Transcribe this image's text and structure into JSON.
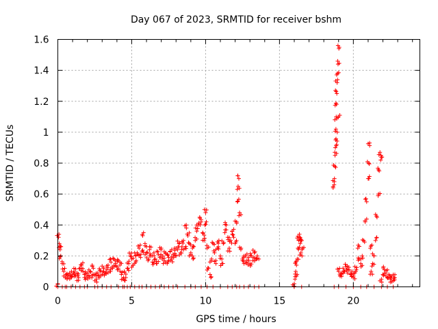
{
  "chart_data": {
    "type": "scatter",
    "title": "Day 067 of 2023, SRMTID for receiver bshm",
    "xlabel": "GPS time / hours",
    "ylabel": "SRMTID / TECUs",
    "xlim": [
      0,
      24.5
    ],
    "ylim": [
      0,
      1.6
    ],
    "xticks": [
      0,
      5,
      10,
      15,
      20
    ],
    "xtick_labels": [
      "0",
      "5",
      "10",
      "15",
      "20"
    ],
    "yticks": [
      0,
      0.2,
      0.4,
      0.6,
      0.8,
      1.0,
      1.2,
      1.4,
      1.6
    ],
    "ytick_labels": [
      "0",
      "0.2",
      "0.4",
      "0.6",
      "0.8",
      "1",
      "1.2",
      "1.4",
      "1.6"
    ],
    "grid": true,
    "marker": "+",
    "color": "#ff0000",
    "series": [
      {
        "name": "SRMTID",
        "points": [
          [
            0.0,
            0.02
          ],
          [
            0.05,
            0.32
          ],
          [
            0.1,
            0.28
          ],
          [
            0.15,
            0.24
          ],
          [
            0.2,
            0.2
          ],
          [
            0.3,
            0.15
          ],
          [
            0.4,
            0.1
          ],
          [
            0.5,
            0.06
          ],
          [
            0.6,
            0.08
          ],
          [
            0.7,
            0.07
          ],
          [
            0.8,
            0.09
          ],
          [
            0.9,
            0.06
          ],
          [
            1.0,
            0.08
          ],
          [
            1.1,
            0.1
          ],
          [
            1.2,
            0.07
          ],
          [
            1.3,
            0.09
          ],
          [
            1.4,
            0.06
          ],
          [
            1.5,
            0.12
          ],
          [
            1.6,
            0.14
          ],
          [
            1.7,
            0.1
          ],
          [
            1.8,
            0.08
          ],
          [
            1.9,
            0.06
          ],
          [
            2.0,
            0.09
          ],
          [
            2.1,
            0.07
          ],
          [
            2.2,
            0.1
          ],
          [
            2.3,
            0.06
          ],
          [
            2.4,
            0.12
          ],
          [
            2.5,
            0.08
          ],
          [
            2.6,
            0.05
          ],
          [
            2.7,
            0.09
          ],
          [
            2.8,
            0.07
          ],
          [
            2.9,
            0.1
          ],
          [
            3.0,
            0.08
          ],
          [
            3.1,
            0.12
          ],
          [
            3.2,
            0.09
          ],
          [
            3.3,
            0.11
          ],
          [
            3.4,
            0.14
          ],
          [
            3.5,
            0.1
          ],
          [
            3.6,
            0.16
          ],
          [
            3.7,
            0.12
          ],
          [
            3.8,
            0.18
          ],
          [
            3.9,
            0.15
          ],
          [
            4.0,
            0.13
          ],
          [
            4.1,
            0.17
          ],
          [
            4.2,
            0.14
          ],
          [
            4.3,
            0.08
          ],
          [
            4.4,
            0.05
          ],
          [
            4.5,
            0.1
          ],
          [
            4.6,
            0.06
          ],
          [
            4.7,
            0.12
          ],
          [
            4.8,
            0.15
          ],
          [
            4.9,
            0.2
          ],
          [
            5.0,
            0.18
          ],
          [
            5.1,
            0.14
          ],
          [
            5.2,
            0.22
          ],
          [
            5.3,
            0.17
          ],
          [
            5.4,
            0.21
          ],
          [
            5.5,
            0.25
          ],
          [
            5.6,
            0.19
          ],
          [
            5.7,
            0.23
          ],
          [
            5.8,
            0.35
          ],
          [
            5.9,
            0.28
          ],
          [
            6.0,
            0.22
          ],
          [
            6.1,
            0.17
          ],
          [
            6.2,
            0.24
          ],
          [
            6.3,
            0.2
          ],
          [
            6.4,
            0.16
          ],
          [
            6.5,
            0.22
          ],
          [
            6.6,
            0.18
          ],
          [
            6.7,
            0.15
          ],
          [
            6.8,
            0.21
          ],
          [
            6.9,
            0.19
          ],
          [
            7.0,
            0.25
          ],
          [
            7.1,
            0.2
          ],
          [
            7.2,
            0.17
          ],
          [
            7.3,
            0.22
          ],
          [
            7.4,
            0.15
          ],
          [
            7.5,
            0.19
          ],
          [
            7.6,
            0.23
          ],
          [
            7.7,
            0.18
          ],
          [
            7.8,
            0.21
          ],
          [
            7.9,
            0.25
          ],
          [
            8.0,
            0.2
          ],
          [
            8.1,
            0.24
          ],
          [
            8.2,
            0.28
          ],
          [
            8.3,
            0.22
          ],
          [
            8.4,
            0.26
          ],
          [
            8.5,
            0.3
          ],
          [
            8.6,
            0.25
          ],
          [
            8.7,
            0.38
          ],
          [
            8.8,
            0.33
          ],
          [
            8.9,
            0.28
          ],
          [
            9.0,
            0.22
          ],
          [
            9.1,
            0.2
          ],
          [
            9.2,
            0.26
          ],
          [
            9.3,
            0.3
          ],
          [
            9.4,
            0.36
          ],
          [
            9.5,
            0.4
          ],
          [
            9.6,
            0.45
          ],
          [
            9.7,
            0.42
          ],
          [
            9.8,
            0.35
          ],
          [
            9.9,
            0.3
          ],
          [
            10.0,
            0.48
          ],
          [
            10.05,
            0.42
          ],
          [
            10.1,
            0.25
          ],
          [
            10.2,
            0.12
          ],
          [
            10.3,
            0.08
          ],
          [
            10.4,
            0.18
          ],
          [
            10.5,
            0.28
          ],
          [
            10.6,
            0.22
          ],
          [
            10.7,
            0.15
          ],
          [
            10.8,
            0.25
          ],
          [
            10.9,
            0.3
          ],
          [
            11.0,
            0.2
          ],
          [
            11.1,
            0.15
          ],
          [
            11.2,
            0.28
          ],
          [
            11.3,
            0.35
          ],
          [
            11.4,
            0.4
          ],
          [
            11.5,
            0.32
          ],
          [
            11.6,
            0.25
          ],
          [
            11.7,
            0.3
          ],
          [
            11.8,
            0.36
          ],
          [
            11.9,
            0.32
          ],
          [
            12.0,
            0.28
          ],
          [
            12.1,
            0.42
          ],
          [
            12.15,
            0.55
          ],
          [
            12.2,
            0.65
          ],
          [
            12.25,
            0.7
          ],
          [
            12.3,
            0.48
          ],
          [
            12.4,
            0.25
          ],
          [
            12.5,
            0.18
          ],
          [
            12.6,
            0.15
          ],
          [
            12.7,
            0.2
          ],
          [
            12.8,
            0.16
          ],
          [
            12.9,
            0.19
          ],
          [
            13.0,
            0.15
          ],
          [
            13.1,
            0.2
          ],
          [
            13.2,
            0.17
          ],
          [
            13.3,
            0.22
          ],
          [
            13.4,
            0.18
          ],
          [
            13.5,
            0.2
          ],
          [
            16.0,
            0.02
          ],
          [
            16.05,
            0.05
          ],
          [
            16.1,
            0.1
          ],
          [
            16.15,
            0.14
          ],
          [
            16.2,
            0.18
          ],
          [
            16.25,
            0.25
          ],
          [
            16.3,
            0.3
          ],
          [
            16.35,
            0.34
          ],
          [
            16.4,
            0.28
          ],
          [
            16.45,
            0.22
          ],
          [
            16.5,
            0.3
          ],
          [
            16.55,
            0.25
          ],
          [
            18.7,
            0.66
          ],
          [
            18.72,
            0.7
          ],
          [
            18.74,
            0.78
          ],
          [
            18.76,
            0.85
          ],
          [
            18.78,
            0.9
          ],
          [
            18.8,
            0.95
          ],
          [
            18.82,
            1.02
          ],
          [
            18.84,
            1.1
          ],
          [
            18.86,
            1.18
          ],
          [
            18.88,
            1.25
          ],
          [
            18.9,
            1.32
          ],
          [
            18.92,
            1.38
          ],
          [
            18.94,
            1.46
          ],
          [
            18.96,
            1.56
          ],
          [
            18.98,
            1.1
          ],
          [
            19.0,
            0.1
          ],
          [
            19.1,
            0.07
          ],
          [
            19.2,
            0.09
          ],
          [
            19.3,
            0.12
          ],
          [
            19.4,
            0.1
          ],
          [
            19.5,
            0.13
          ],
          [
            19.6,
            0.09
          ],
          [
            19.7,
            0.11
          ],
          [
            19.8,
            0.08
          ],
          [
            19.9,
            0.1
          ],
          [
            20.0,
            0.07
          ],
          [
            20.1,
            0.09
          ],
          [
            20.2,
            0.11
          ],
          [
            20.3,
            0.25
          ],
          [
            20.4,
            0.18
          ],
          [
            20.5,
            0.15
          ],
          [
            20.6,
            0.2
          ],
          [
            20.7,
            0.3
          ],
          [
            20.8,
            0.42
          ],
          [
            20.9,
            0.55
          ],
          [
            21.0,
            0.7
          ],
          [
            21.05,
            0.8
          ],
          [
            21.1,
            0.93
          ],
          [
            21.15,
            0.25
          ],
          [
            21.2,
            0.1
          ],
          [
            21.3,
            0.15
          ],
          [
            21.4,
            0.2
          ],
          [
            21.5,
            0.3
          ],
          [
            21.6,
            0.45
          ],
          [
            21.7,
            0.6
          ],
          [
            21.75,
            0.75
          ],
          [
            21.8,
            0.87
          ],
          [
            21.85,
            0.82
          ],
          [
            21.9,
            0.05
          ],
          [
            22.0,
            0.08
          ],
          [
            22.1,
            0.11
          ],
          [
            22.2,
            0.09
          ],
          [
            22.3,
            0.06
          ],
          [
            22.4,
            0.08
          ],
          [
            22.5,
            0.05
          ],
          [
            22.6,
            0.07
          ],
          [
            22.7,
            0.04
          ],
          [
            22.8,
            0.06
          ]
        ]
      }
    ],
    "zero_points_x": [
      0.0,
      0.3,
      0.5,
      0.6,
      0.9,
      1.2,
      1.5,
      1.8,
      2.0,
      2.5,
      2.7,
      3.0,
      3.3,
      3.6,
      4.1,
      4.4,
      4.5,
      4.7,
      4.9,
      5.2,
      5.5,
      5.7,
      6.0,
      6.3,
      6.6,
      6.9,
      7.2,
      7.5,
      7.8,
      8.1,
      8.6,
      9.0,
      9.3,
      9.7,
      10.1,
      10.5,
      11.0,
      11.5,
      11.8,
      12.1,
      12.3,
      12.6,
      12.9,
      13.3,
      13.6,
      16.0,
      16.5,
      18.7,
      19.0,
      19.5,
      20.0,
      20.5,
      20.9,
      21.4,
      21.9,
      22.3,
      22.7
    ]
  }
}
